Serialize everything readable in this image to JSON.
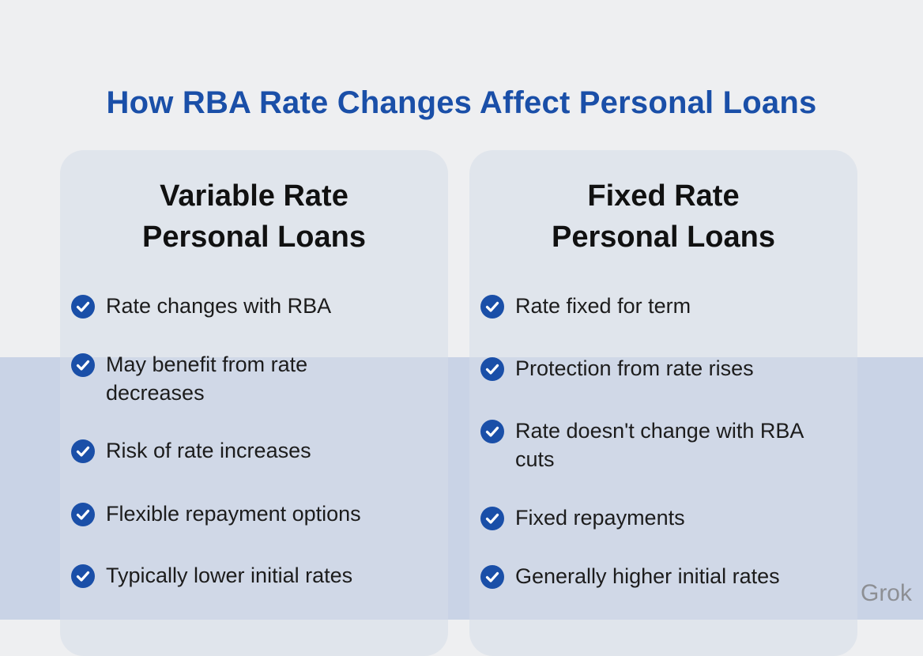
{
  "title": "How RBA Rate Changes Affect Personal Loans",
  "columns": [
    {
      "heading": [
        "Variable Rate",
        "Personal Loans"
      ],
      "items": [
        "Rate changes with RBA",
        "May benefit from rate decreases",
        "Risk of rate increases",
        "Flexible repayment options",
        "Typically lower initial rates"
      ]
    },
    {
      "heading": [
        "Fixed Rate",
        "Personal Loans"
      ],
      "items": [
        "Rate fixed for term",
        "Protection from rate rises",
        "Rate doesn't change with RBA cuts",
        "Fixed repayments",
        "Generally higher initial rates"
      ]
    }
  ],
  "watermark": "Grok"
}
